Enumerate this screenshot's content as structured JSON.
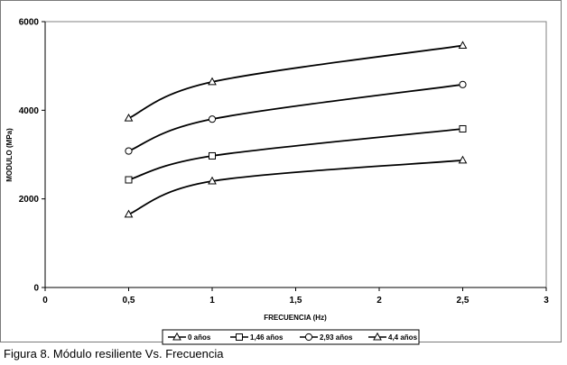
{
  "chart_data": {
    "type": "line",
    "xlabel": "FRECUENCIA (Hz)",
    "ylabel": "MODULO (MPa)",
    "xlim": [
      0,
      3
    ],
    "ylim": [
      0,
      6000
    ],
    "x_ticks": [
      "0",
      "0,5",
      "1",
      "1,5",
      "2",
      "2,5",
      "3"
    ],
    "y_ticks": [
      "0",
      "2000",
      "4000",
      "6000"
    ],
    "x_tick_values": [
      0,
      0.5,
      1,
      1.5,
      2,
      2.5,
      3
    ],
    "y_tick_values": [
      0,
      2000,
      4000,
      6000
    ],
    "x": [
      0.5,
      1,
      2.5
    ],
    "grid": false,
    "legend_position": "bottom",
    "series": [
      {
        "name": "0 años",
        "marker": "triangle",
        "values": [
          1650,
          2400,
          2870
        ]
      },
      {
        "name": "1,46 años",
        "marker": "square",
        "values": [
          2430,
          2970,
          3580
        ]
      },
      {
        "name": "2,93 años",
        "marker": "circle",
        "values": [
          3080,
          3800,
          4580
        ]
      },
      {
        "name": "4,4 años",
        "marker": "triangle",
        "values": [
          3820,
          4640,
          5460
        ]
      }
    ],
    "line_color": "#000000"
  },
  "caption": "Figura 8. Módulo resiliente Vs. Frecuencia"
}
